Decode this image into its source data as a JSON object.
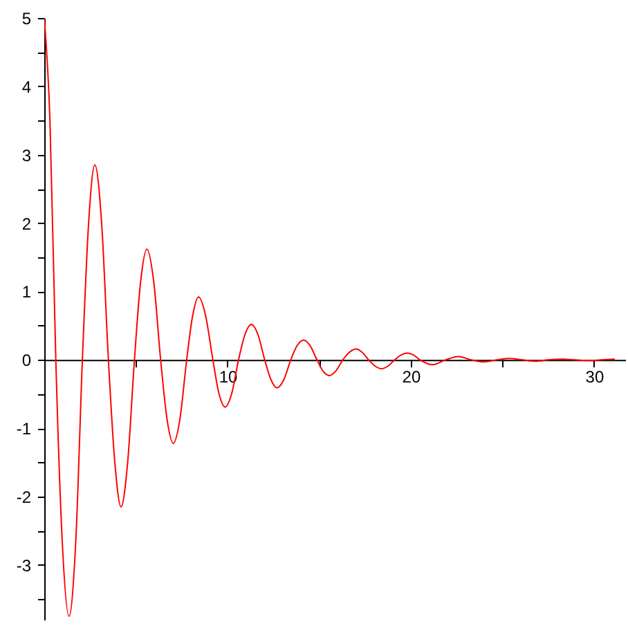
{
  "chart_data": {
    "type": "line",
    "x": [
      0,
      0.31,
      0.63,
      0.98,
      1.35,
      1.72,
      2.08,
      2.42,
      2.76,
      3.13,
      3.5,
      3.85,
      4.19,
      4.55,
      4.92,
      5.26,
      5.6,
      5.97,
      6.35,
      6.7,
      7.04,
      7.4,
      7.77,
      8.1,
      8.42,
      8.8,
      9.2,
      9.53,
      9.87,
      10.23,
      10.6,
      10.95,
      11.3,
      11.66,
      12.03,
      12.37,
      12.7,
      13.07,
      13.45,
      13.8,
      14.15,
      14.5,
      14.88,
      15.2,
      15.55,
      15.92,
      16.29,
      16.65,
      17.0,
      17.35,
      17.7,
      18.05,
      18.4,
      18.76,
      19.12,
      19.46,
      19.8,
      20.15,
      20.5,
      21.2,
      21.9,
      22.6,
      23.3,
      24.0,
      24.7,
      25.4,
      26.1,
      26.8,
      27.5,
      28.3,
      29.0,
      29.7,
      30.4,
      31.1
    ],
    "series": [
      {
        "color": "#ff0000",
        "values": [
          5,
          3.5,
          0,
          -2.65,
          -3.75,
          -2.65,
          0,
          2.0,
          2.85,
          2.0,
          0,
          -1.5,
          -2.15,
          -1.5,
          0,
          1.15,
          1.62,
          1.15,
          0,
          -0.87,
          -1.22,
          -0.87,
          0,
          0.65,
          0.92,
          0.65,
          0,
          -0.49,
          -0.69,
          -0.49,
          0,
          0.37,
          0.52,
          0.37,
          0,
          -0.29,
          -0.41,
          -0.29,
          0,
          0.21,
          0.29,
          0.21,
          0,
          -0.16,
          -0.23,
          -0.16,
          0,
          0.11,
          0.16,
          0.11,
          0,
          -0.09,
          -0.13,
          -0.09,
          0,
          0.07,
          0.1,
          0.07,
          0,
          -0.07,
          0,
          0.05,
          0,
          -0.03,
          0,
          0.02,
          0,
          -0.02,
          0,
          0.01,
          0,
          -0.01,
          0,
          0.01
        ]
      }
    ],
    "xlim": [
      0,
      31.7
    ],
    "ylim": [
      -3.8,
      5
    ],
    "xticks": [
      {
        "value": 5,
        "label": null
      },
      10,
      {
        "value": 15,
        "label": null
      },
      20,
      {
        "value": 25,
        "label": null
      },
      30
    ],
    "yticks": [
      {
        "value": -3.5,
        "label": null
      },
      -3,
      {
        "value": -2.5,
        "label": null
      },
      -2,
      {
        "value": -1.5,
        "label": null
      },
      -1,
      {
        "value": -0.5,
        "label": null
      },
      0,
      {
        "value": 0.5,
        "label": null
      },
      1,
      {
        "value": 1.5,
        "label": null
      },
      2,
      {
        "value": 2.5,
        "label": null
      },
      3,
      {
        "value": 3.5,
        "label": null
      },
      4,
      {
        "value": 4.5,
        "label": null
      },
      5
    ]
  }
}
